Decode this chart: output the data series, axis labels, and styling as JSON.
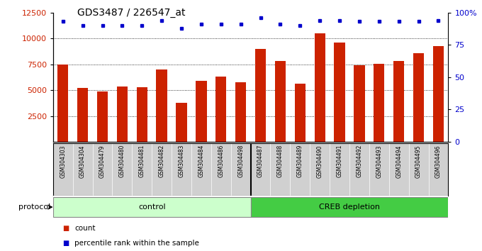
{
  "title": "GDS3487 / 226547_at",
  "samples": [
    "GSM304303",
    "GSM304304",
    "GSM304479",
    "GSM304480",
    "GSM304481",
    "GSM304482",
    "GSM304483",
    "GSM304484",
    "GSM304486",
    "GSM304498",
    "GSM304487",
    "GSM304488",
    "GSM304489",
    "GSM304490",
    "GSM304491",
    "GSM304492",
    "GSM304493",
    "GSM304494",
    "GSM304495",
    "GSM304496"
  ],
  "counts": [
    7500,
    5200,
    4900,
    5350,
    5250,
    7000,
    3800,
    5900,
    6300,
    5750,
    8950,
    7850,
    5650,
    10500,
    9600,
    7400,
    7550,
    7850,
    8600,
    9250
  ],
  "percentile_ranks": [
    93,
    90,
    90,
    90,
    90,
    94,
    88,
    91,
    91,
    91,
    96,
    91,
    90,
    94,
    94,
    93,
    93,
    93,
    93,
    94
  ],
  "bar_color": "#cc2200",
  "dot_color": "#0000cc",
  "ylim_left": [
    0,
    12500
  ],
  "ylim_right": [
    0,
    100
  ],
  "yticks_left": [
    2500,
    5000,
    7500,
    10000,
    12500
  ],
  "yticks_right": [
    0,
    25,
    50,
    75,
    100
  ],
  "ytick_right_labels": [
    "0",
    "25",
    "50",
    "75",
    "100%"
  ],
  "grid_values": [
    2500,
    5000,
    7500,
    10000
  ],
  "control_count": 10,
  "creb_count": 10,
  "protocol_label": "protocol",
  "group_labels": [
    "control",
    "CREB depletion"
  ],
  "legend_items": [
    "count",
    "percentile rank within the sample"
  ],
  "background_color": "#ffffff",
  "sample_bg_color": "#d0d0d0",
  "control_bg_color": "#ccffcc",
  "creb_bg_color": "#44cc44",
  "bar_width": 0.55
}
